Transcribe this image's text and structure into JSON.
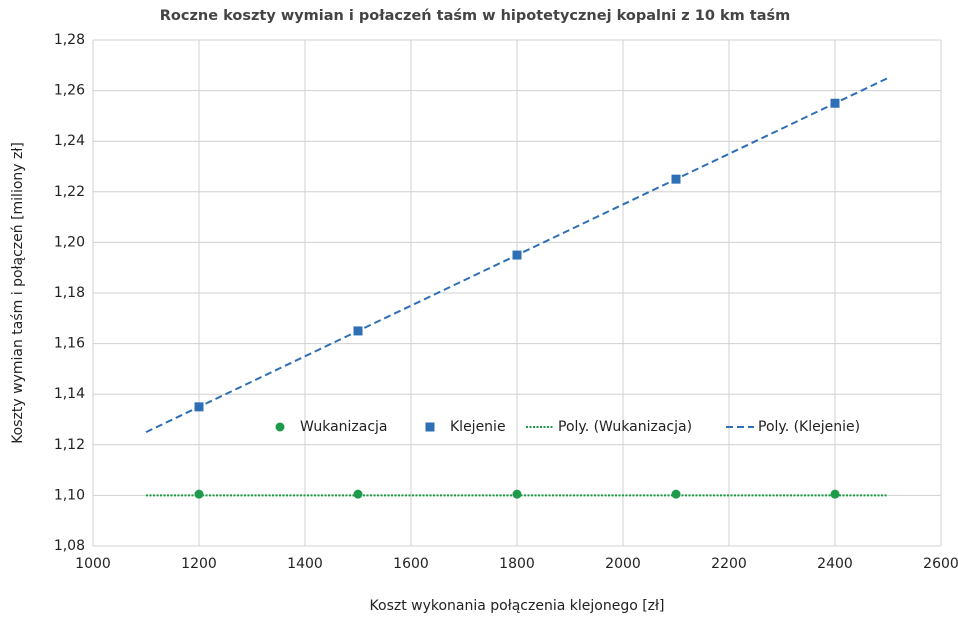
{
  "chart_data": {
    "type": "scatter",
    "title": "Roczne koszty wymian i połaczeń taśm w hipotetycznej kopalni z 10 km taśm",
    "x_label": "Koszt wykonania połączenia klejonego [zł]",
    "y_label": "Koszty wymian taśm i połączeń [miliony zł]",
    "xlim": [
      1000,
      2600
    ],
    "xticks": [
      1000,
      1200,
      1400,
      1600,
      1800,
      2000,
      2200,
      2400,
      2600
    ],
    "ylim": [
      1.08,
      1.28
    ],
    "yticks": [
      {
        "value": 1.08,
        "label": "1,08"
      },
      {
        "value": 1.1,
        "label": "1,10"
      },
      {
        "value": 1.12,
        "label": "1,12"
      },
      {
        "value": 1.14,
        "label": "1,14"
      },
      {
        "value": 1.16,
        "label": "1,16"
      },
      {
        "value": 1.18,
        "label": "1,18"
      },
      {
        "value": 1.2,
        "label": "1,20"
      },
      {
        "value": 1.22,
        "label": "1,22"
      },
      {
        "value": 1.24,
        "label": "1,24"
      },
      {
        "value": 1.26,
        "label": "1,26"
      },
      {
        "value": 1.28,
        "label": "1,28"
      }
    ],
    "grid": true,
    "series": [
      {
        "name": "Wukanizacja",
        "color": "#1e9b4a",
        "marker": "circle",
        "x": [
          1200,
          1500,
          1800,
          2100,
          2400
        ],
        "values": [
          1.1005,
          1.1005,
          1.1005,
          1.1005,
          1.1005
        ]
      },
      {
        "name": "Klejenie",
        "color": "#2e6fb5",
        "marker": "square",
        "x": [
          1200,
          1500,
          1800,
          2100,
          2400
        ],
        "values": [
          1.135,
          1.165,
          1.195,
          1.225,
          1.255
        ]
      },
      {
        "name": "Poly. (Wukanizacja)",
        "color": "#1e9b4a",
        "line": "dotted",
        "x": [
          1100,
          2500
        ],
        "values": [
          1.1,
          1.1
        ]
      },
      {
        "name": "Poly. (Klejenie)",
        "color": "#2e6fb5",
        "line": "dashed",
        "x": [
          1100,
          2500
        ],
        "values": [
          1.125,
          1.265
        ]
      }
    ]
  }
}
